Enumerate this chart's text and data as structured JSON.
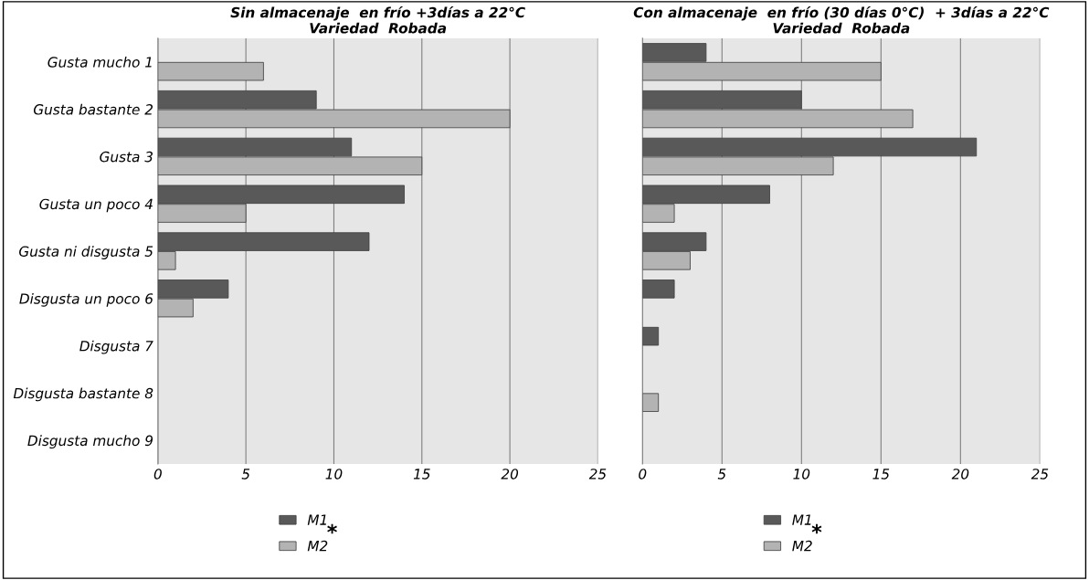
{
  "chart_data": [
    {
      "type": "bar",
      "orientation": "horizontal",
      "title": "Sin almacenaje  en frío +3días a 22°C\nVariedad  Robada",
      "categories": [
        "Gusta mucho 1",
        "Gusta bastante 2",
        "Gusta 3",
        "Gusta un poco 4",
        "Gusta ni disgusta 5",
        "Disgusta un poco 6",
        "Disgusta 7",
        "Disgusta bastante 8",
        "Disgusta mucho 9"
      ],
      "series": [
        {
          "name": "M1",
          "color": "#595959",
          "values": [
            null,
            9,
            11,
            14,
            12,
            4,
            null,
            null,
            null
          ]
        },
        {
          "name": "M2",
          "color": "#b3b3b3",
          "values": [
            6,
            20,
            15,
            5,
            1,
            2,
            null,
            null,
            null
          ]
        }
      ],
      "xlim": [
        0,
        25
      ],
      "xticks": [
        0,
        5,
        10,
        15,
        20,
        25
      ],
      "grid": "x",
      "legend": "bottom",
      "annotations": [
        "*"
      ]
    },
    {
      "type": "bar",
      "orientation": "horizontal",
      "title": "Con almacenaje  en frío (30 días 0°C)  + 3días a 22°C\nVariedad  Robada",
      "categories": [
        null,
        null,
        null,
        null,
        null,
        null,
        null,
        null,
        null
      ],
      "series": [
        {
          "name": "M1",
          "color": "#595959",
          "values": [
            4,
            10,
            21,
            8,
            4,
            2,
            1,
            null,
            null
          ]
        },
        {
          "name": "M2",
          "color": "#b3b3b3",
          "values": [
            15,
            17,
            12,
            2,
            3,
            null,
            null,
            1,
            null
          ]
        }
      ],
      "xlim": [
        0,
        25
      ],
      "xticks": [
        0,
        5,
        10,
        15,
        20,
        25
      ],
      "grid": "x",
      "legend": "bottom",
      "annotations": [
        "*"
      ],
      "tick_labels": "x"
    }
  ]
}
